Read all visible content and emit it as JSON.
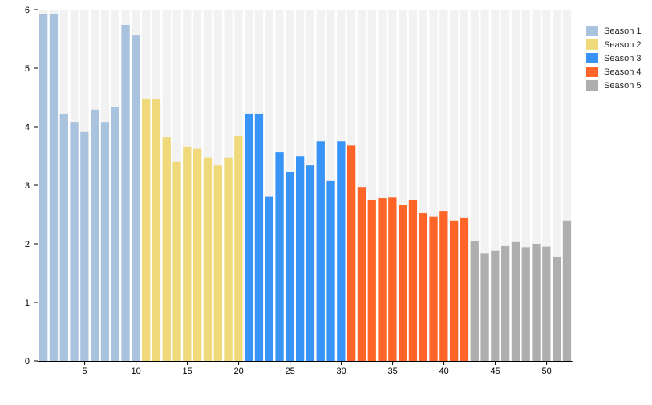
{
  "chart_data": {
    "type": "bar",
    "title": "",
    "xlabel": "",
    "ylabel": "",
    "xlim": [
      0.5,
      52.5
    ],
    "ylim": [
      0,
      6
    ],
    "x_ticks": [
      5,
      10,
      15,
      20,
      25,
      30,
      35,
      40,
      45,
      50
    ],
    "y_ticks": [
      0,
      1,
      2,
      3,
      4,
      5,
      6
    ],
    "background_column_color": "#f2f2f2",
    "legend_position": "right",
    "series": [
      {
        "name": "Season 1",
        "color": "#a9c3de",
        "x": [
          1,
          2,
          3,
          4,
          5,
          6,
          7,
          8,
          9,
          10
        ],
        "values": [
          5.93,
          5.93,
          4.22,
          4.08,
          3.92,
          4.29,
          4.08,
          4.33,
          5.74,
          5.56
        ]
      },
      {
        "name": "Season 2",
        "color": "#efd97a",
        "x": [
          11,
          12,
          13,
          14,
          15,
          16,
          17,
          18,
          19,
          20
        ],
        "values": [
          4.48,
          4.48,
          3.82,
          3.4,
          3.66,
          3.62,
          3.47,
          3.34,
          3.47,
          3.85
        ]
      },
      {
        "name": "Season 3",
        "color": "#3895f7",
        "x": [
          21,
          22,
          23,
          24,
          25,
          26,
          27,
          28,
          29,
          30
        ],
        "values": [
          4.22,
          4.22,
          2.8,
          3.56,
          3.23,
          3.49,
          3.34,
          3.75,
          3.07,
          3.75
        ]
      },
      {
        "name": "Season 4",
        "color": "#ff6528",
        "x": [
          31,
          32,
          33,
          34,
          35,
          36,
          37,
          38,
          39,
          40,
          41,
          42
        ],
        "values": [
          3.68,
          2.97,
          2.75,
          2.78,
          2.79,
          2.66,
          2.74,
          2.52,
          2.47,
          2.56,
          2.4,
          2.44
        ]
      },
      {
        "name": "Season 5",
        "color": "#aeaeae",
        "x": [
          43,
          44,
          45,
          46,
          47,
          48,
          49,
          50,
          51,
          52
        ],
        "values": [
          2.05,
          1.83,
          1.88,
          1.96,
          2.03,
          1.94,
          2.0,
          1.95,
          1.77,
          2.4
        ]
      }
    ]
  }
}
